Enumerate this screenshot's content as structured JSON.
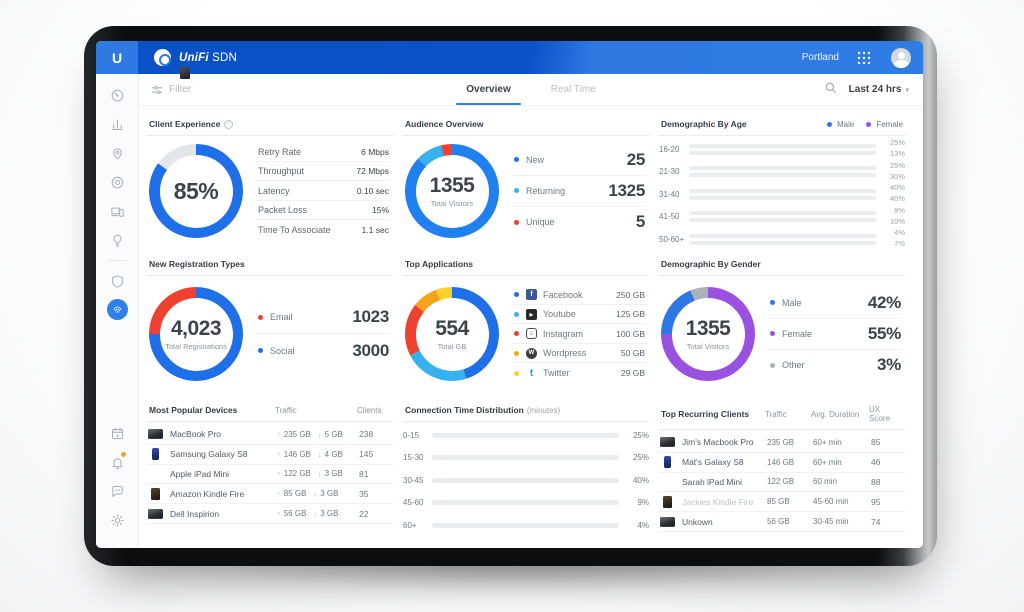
{
  "topbar": {
    "brand": "UniFi",
    "brand_suffix": "SDN",
    "site": "Portland"
  },
  "filterbar": {
    "filter_label": "Filter",
    "tabs": [
      {
        "label": "Overview",
        "state": "active"
      },
      {
        "label": "Real Time",
        "state": ""
      }
    ],
    "time_range": "Last 24 hrs"
  },
  "sidebar": {
    "icons": [
      "speedometer",
      "bar-chart",
      "map-pin",
      "target",
      "devices",
      "lightbulb",
      "shield",
      "fingerprint",
      "calendar",
      "bell",
      "chat",
      "gear"
    ],
    "active_icon": "fingerprint",
    "notification_dot": true
  },
  "palette": {
    "header_blue_dark": "#0a52ca",
    "header_blue_light": "#2e7ae2",
    "primary_blue": "#1f6fe8",
    "light_blue": "#38b1ef",
    "pale_blue": "#9ed8f5",
    "red": "#ee4130",
    "orange": "#f5a31f",
    "yellow": "#f8d22a",
    "purple": "#9b51e0",
    "gray_ring": "#e2e5e9",
    "gray_other": "#aab1b8"
  },
  "cards": {
    "client_experience": {
      "title": "Client Experience",
      "percent": "85%",
      "percent_value": 85,
      "stats": [
        {
          "label": "Retry Rate",
          "value": "6 Mbps"
        },
        {
          "label": "Throughput",
          "value": "72 Mbps"
        },
        {
          "label": "Latency",
          "value": "0.10 sec"
        },
        {
          "label": "Packet Loss",
          "value": "15%"
        },
        {
          "label": "Time To Associate",
          "value": "1.1 sec"
        }
      ]
    },
    "audience_overview": {
      "title": "Audience Overview",
      "total": "1355",
      "total_label": "Total Visitors",
      "legend": [
        {
          "label": "New",
          "value": "25",
          "color": "#1f6fe8"
        },
        {
          "label": "Returning",
          "value": "1325",
          "color": "#38b1ef"
        },
        {
          "label": "Unique",
          "value": "5",
          "color": "#ee4130"
        }
      ]
    },
    "demographic_age": {
      "title": "Demographic By Age",
      "legend": [
        {
          "label": "Male",
          "color": "#2e78e6"
        },
        {
          "label": "Female",
          "color": "#9b51e0"
        }
      ],
      "groups": [
        {
          "label": "16-20",
          "female_pct": 25,
          "male_pct": 13,
          "female_text": "25%",
          "male_text": "13%"
        },
        {
          "label": "21-30",
          "female_pct": 25,
          "male_pct": 30,
          "female_text": "25%",
          "male_text": "30%"
        },
        {
          "label": "31-40",
          "female_pct": 40,
          "male_pct": 40,
          "female_text": "40%",
          "male_text": "40%"
        },
        {
          "label": "41-50",
          "female_pct": 9,
          "male_pct": 10,
          "female_text": "9%",
          "male_text": "10%"
        },
        {
          "label": "50-60+",
          "female_pct": 4,
          "male_pct": 7,
          "female_text": "4%",
          "male_text": "7%"
        }
      ]
    },
    "registration_types": {
      "title": "New Registration Types",
      "total": "4,023",
      "total_label": "Total Registrations",
      "legend": [
        {
          "label": "Email",
          "value": "1023",
          "color": "#ee4130"
        },
        {
          "label": "Social",
          "value": "3000",
          "color": "#1f6fe8"
        }
      ]
    },
    "top_applications": {
      "title": "Top Applications",
      "total": "554",
      "total_label": "Total GB",
      "apps": [
        {
          "label": "Facebook",
          "value": "250 GB",
          "color": "#1f6fe8",
          "icon": "facebook"
        },
        {
          "label": "Youtube",
          "value": "125 GB",
          "color": "#38b1ef",
          "icon": "youtube"
        },
        {
          "label": "Instagram",
          "value": "100 GB",
          "color": "#ee4130",
          "icon": "instagram"
        },
        {
          "label": "Wordpress",
          "value": "50 GB",
          "color": "#f5a31f",
          "icon": "wordpress"
        },
        {
          "label": "Twitter",
          "value": "29 GB",
          "color": "#f8d22a",
          "icon": "twitter"
        }
      ]
    },
    "demographic_gender": {
      "title": "Demographic By Gender",
      "total": "1355",
      "total_label": "Total Visitors",
      "legend": [
        {
          "label": "Male",
          "value": "42%",
          "color": "#2e78e6"
        },
        {
          "label": "Female",
          "value": "55%",
          "color": "#9b51e0"
        },
        {
          "label": "Other",
          "value": "3%",
          "color": "#aab1b8"
        }
      ]
    },
    "popular_devices": {
      "title": "Most Popular Devices",
      "col_traffic": "Traffic",
      "col_clients": "Clients",
      "rows": [
        {
          "name": "MacBook Pro",
          "up": "235 GB",
          "down": "5 GB",
          "clients": "238",
          "type": "laptop"
        },
        {
          "name": "Samsung Galaxy S8",
          "up": "146 GB",
          "down": "4 GB",
          "clients": "145",
          "type": "phone"
        },
        {
          "name": "Apple iPad Mini",
          "up": "122 GB",
          "down": "3 GB",
          "clients": "81",
          "type": "tablet"
        },
        {
          "name": "Amazon Kindle Fire",
          "up": "85 GB",
          "down": "3 GB",
          "clients": "35",
          "type": "kindle"
        },
        {
          "name": "Dell Inspirion",
          "up": "56 GB",
          "down": "3 GB",
          "clients": "22",
          "type": "laptop"
        }
      ]
    },
    "connection_time": {
      "title": "Connection Time Distribution",
      "subtitle": "(minutes)",
      "rows": [
        {
          "label": "0-15",
          "pct": 25,
          "text": "25%",
          "color": "#1f6fe8"
        },
        {
          "label": "15-30",
          "pct": 25,
          "text": "25%",
          "color": "#9ed8f5"
        },
        {
          "label": "30-45",
          "pct": 40,
          "text": "40%",
          "color": "#ee4130"
        },
        {
          "label": "45-60",
          "pct": 9,
          "text": "9%",
          "color": "#f5a31f"
        },
        {
          "label": "60+",
          "pct": 4,
          "text": "4%",
          "color": "#f8d22a"
        }
      ]
    },
    "recurring_clients": {
      "title": "Top Recurring Clients",
      "col_traffic": "Traffic",
      "col_duration": "Avg. Duration",
      "col_score": "UX Score",
      "rows": [
        {
          "name": "Jim's Macbook Pro",
          "traffic": "235 GB",
          "duration": "60+ min",
          "score": "85",
          "type": "laptop"
        },
        {
          "name": "Mat's Galaxy S8",
          "traffic": "146 GB",
          "duration": "60+ min",
          "score": "46",
          "type": "phone"
        },
        {
          "name": "Sarah iPad Mini",
          "traffic": "122 GB",
          "duration": "60 min",
          "score": "88",
          "type": "tablet"
        },
        {
          "name": "Jackies Kindle Fire",
          "traffic": "85 GB",
          "duration": "45-60 min",
          "score": "95",
          "type": "kindle",
          "dim": "dim"
        },
        {
          "name": "Unkown",
          "traffic": "56 GB",
          "duration": "30-45 min",
          "score": "74",
          "type": "laptop"
        }
      ]
    }
  }
}
